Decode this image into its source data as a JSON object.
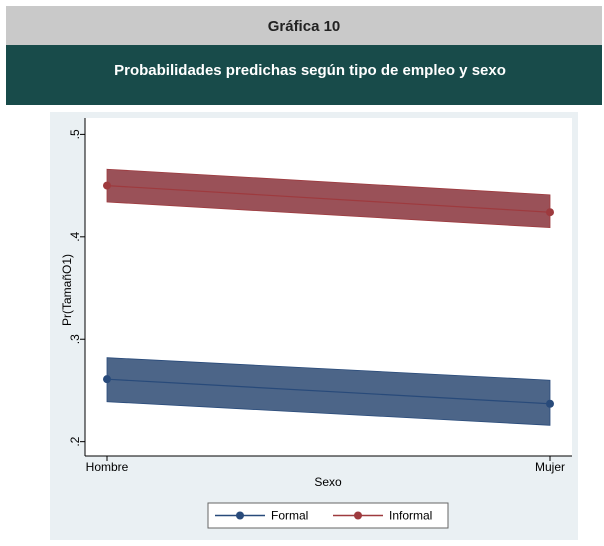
{
  "header": {
    "title": "Gráfica 10",
    "subtitle": "Probabilidades predichas según tipo de empleo y sexo"
  },
  "chart_data": {
    "type": "line",
    "ylabel": "Pr(TamañO1)",
    "xlabel": "Sexo",
    "categories": [
      "Hombre",
      "Mujer"
    ],
    "series": [
      {
        "name": "Formal",
        "color": "#284a7a",
        "band_color": "#4c6588",
        "values": [
          0.261,
          0.237
        ],
        "lower": [
          0.239,
          0.216
        ],
        "upper": [
          0.282,
          0.26
        ]
      },
      {
        "name": "Informal",
        "color": "#9e3a3e",
        "band_color": "#9a5158",
        "values": [
          0.45,
          0.424
        ],
        "lower": [
          0.434,
          0.409
        ],
        "upper": [
          0.466,
          0.441
        ]
      }
    ],
    "ylim": [
      0.186,
      0.516
    ],
    "yticks": [
      {
        "value": 0.2,
        "label": ".2"
      },
      {
        "value": 0.3,
        "label": ".3"
      },
      {
        "value": 0.4,
        "label": ".4"
      },
      {
        "value": 0.5,
        "label": ".5"
      }
    ],
    "legend": "bottom"
  }
}
